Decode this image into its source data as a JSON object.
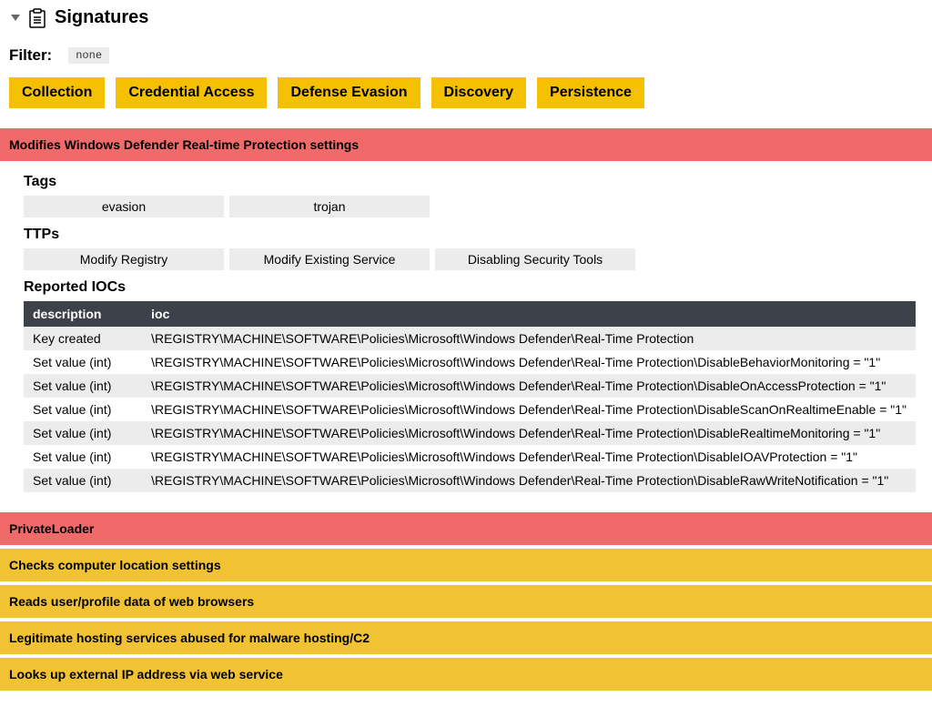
{
  "colors": {
    "red": "#f06a6a",
    "yellow": "#f1c232",
    "category": "#f5c000",
    "chip": "#ececec",
    "table_header": "#3d4149"
  },
  "header": {
    "title": "Signatures"
  },
  "filter": {
    "label": "Filter:",
    "value": "none"
  },
  "categories": [
    "Collection",
    "Credential Access",
    "Defense Evasion",
    "Discovery",
    "Persistence"
  ],
  "detail": {
    "title": "Modifies Windows Defender Real-time Protection settings",
    "tags_header": "Tags",
    "tags": [
      "evasion",
      "trojan"
    ],
    "ttps_header": "TTPs",
    "ttps": [
      "Modify Registry",
      "Modify Existing Service",
      "Disabling Security Tools"
    ],
    "iocs_header": "Reported IOCs",
    "iocs_columns": [
      "description",
      "ioc"
    ],
    "iocs_rows": [
      [
        "Key created",
        "\\REGISTRY\\MACHINE\\SOFTWARE\\Policies\\Microsoft\\Windows Defender\\Real-Time Protection"
      ],
      [
        "Set value (int)",
        "\\REGISTRY\\MACHINE\\SOFTWARE\\Policies\\Microsoft\\Windows Defender\\Real-Time Protection\\DisableBehaviorMonitoring = \"1\""
      ],
      [
        "Set value (int)",
        "\\REGISTRY\\MACHINE\\SOFTWARE\\Policies\\Microsoft\\Windows Defender\\Real-Time Protection\\DisableOnAccessProtection = \"1\""
      ],
      [
        "Set value (int)",
        "\\REGISTRY\\MACHINE\\SOFTWARE\\Policies\\Microsoft\\Windows Defender\\Real-Time Protection\\DisableScanOnRealtimeEnable = \"1\""
      ],
      [
        "Set value (int)",
        "\\REGISTRY\\MACHINE\\SOFTWARE\\Policies\\Microsoft\\Windows Defender\\Real-Time Protection\\DisableRealtimeMonitoring = \"1\""
      ],
      [
        "Set value (int)",
        "\\REGISTRY\\MACHINE\\SOFTWARE\\Policies\\Microsoft\\Windows Defender\\Real-Time Protection\\DisableIOAVProtection = \"1\""
      ],
      [
        "Set value (int)",
        "\\REGISTRY\\MACHINE\\SOFTWARE\\Policies\\Microsoft\\Windows Defender\\Real-Time Protection\\DisableRawWriteNotification = \"1\""
      ]
    ]
  },
  "signatures": [
    {
      "label": "PrivateLoader",
      "severity": "red"
    },
    {
      "label": "Checks computer location settings",
      "severity": "yellow"
    },
    {
      "label": "Reads user/profile data of web browsers",
      "severity": "yellow"
    },
    {
      "label": "Legitimate hosting services abused for malware hosting/C2",
      "severity": "yellow"
    },
    {
      "label": "Looks up external IP address via web service",
      "severity": "yellow"
    }
  ]
}
